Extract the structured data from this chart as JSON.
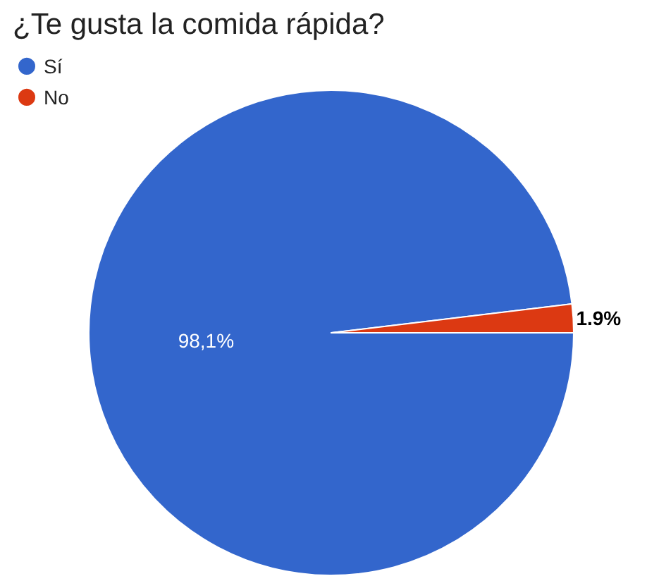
{
  "chart_data": {
    "type": "pie",
    "title": "¿Te gusta la comida rápida?",
    "categories": [
      "Sí",
      "No"
    ],
    "values": [
      98.1,
      1.9
    ],
    "colors": [
      "#3366cc",
      "#dc3912"
    ],
    "value_labels": [
      "98,1%",
      "1.9%"
    ],
    "legend": "top left"
  }
}
